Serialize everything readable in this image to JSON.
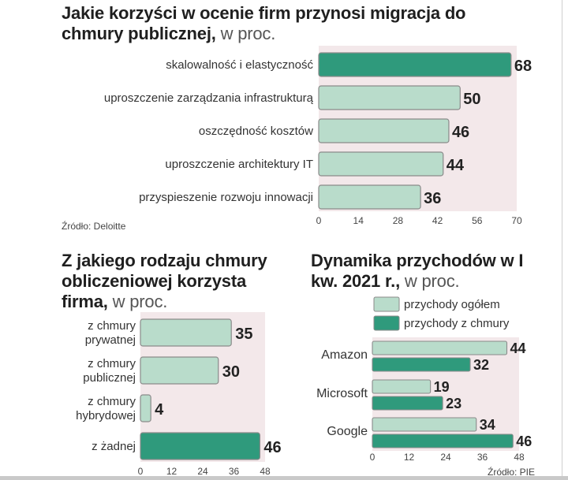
{
  "colors": {
    "light": "#b9dccb",
    "dark": "#2f9a7c",
    "stroke": "#8a8a8a",
    "panel": "#f3e8ea"
  },
  "top": {
    "title_main": "Jakie korzyści w ocenie firm przynosi migracja do chmury publicznej,",
    "title_unit": "w proc.",
    "source": "Źródło: Deloitte"
  },
  "left": {
    "title_main": "Z jakiego rodzaju chmury obliczeniowej korzysta firma,",
    "title_unit": "w proc."
  },
  "right": {
    "title_main": "Dynamika przychodów w I kw. 2021 r.,",
    "title_unit": "w proc.",
    "source": "Źródło: PIE"
  },
  "chart_data": [
    {
      "type": "bar",
      "orientation": "horizontal",
      "categories": [
        "skalowalność i elastyczność",
        "uproszczenie zarządzania infrastrukturą",
        "oszczędność kosztów",
        "uproszczenie architektury IT",
        "przyspieszenie rozwoju innowacji"
      ],
      "values": [
        68,
        50,
        46,
        44,
        36
      ],
      "highlight": [
        true,
        false,
        false,
        false,
        false
      ],
      "xlim": [
        0,
        70
      ],
      "xticks": [
        0,
        14,
        28,
        42,
        56,
        70
      ]
    },
    {
      "type": "bar",
      "orientation": "horizontal",
      "categories": [
        [
          "z chmury",
          "prywatnej"
        ],
        [
          "z chmury",
          "publicznej"
        ],
        [
          "z chmury",
          "hybrydowej"
        ],
        [
          "z żadnej"
        ]
      ],
      "values": [
        35,
        30,
        4,
        46
      ],
      "highlight": [
        false,
        false,
        false,
        true
      ],
      "xlim": [
        0,
        48
      ],
      "xticks": [
        0,
        12,
        24,
        36,
        48
      ]
    },
    {
      "type": "bar",
      "orientation": "horizontal",
      "categories": [
        "Amazon",
        "Microsoft",
        "Google"
      ],
      "series": [
        {
          "name": "przychody ogółem",
          "values": [
            44,
            19,
            34
          ]
        },
        {
          "name": "przychody z chmury",
          "values": [
            32,
            23,
            46
          ]
        }
      ],
      "legend": "top",
      "xlim": [
        0,
        48
      ],
      "xticks": [
        0,
        12,
        24,
        36,
        48
      ]
    }
  ]
}
